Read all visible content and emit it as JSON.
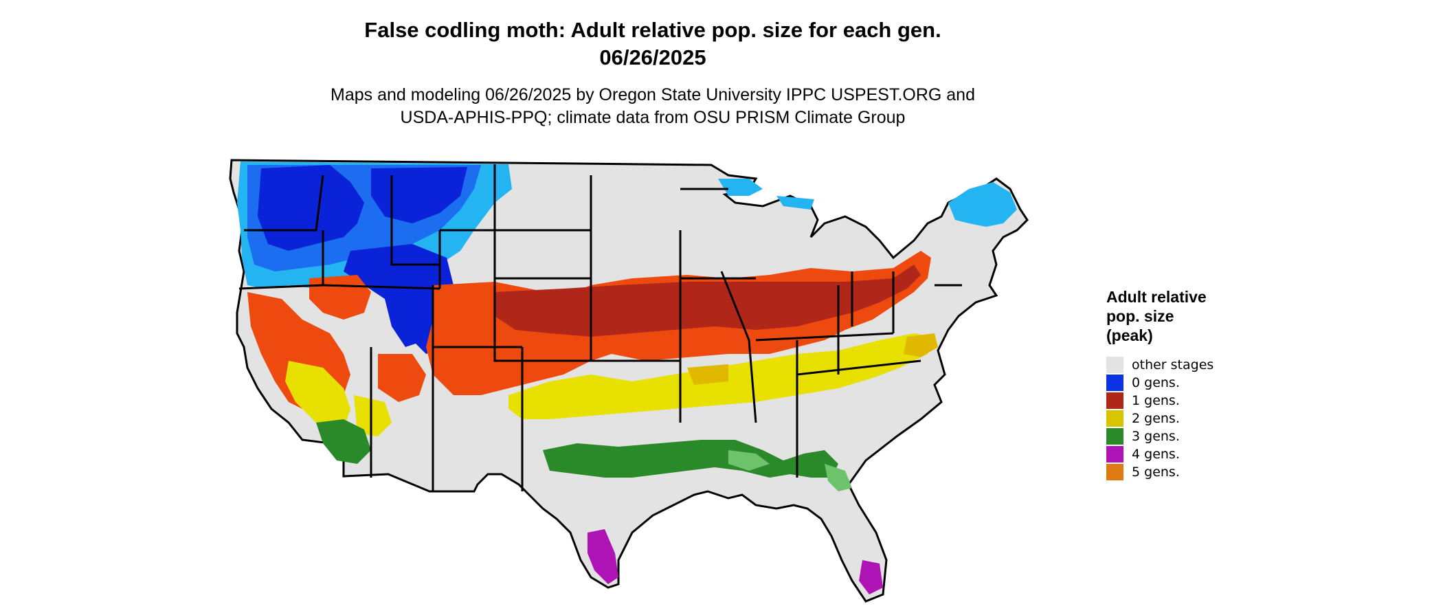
{
  "title_line1": "False codling moth: Adult relative pop. size for each gen.",
  "title_line2": "06/26/2025",
  "subtitle_line1": "Maps and modeling 06/26/2025 by Oregon State University IPPC USPEST.ORG and",
  "subtitle_line2": "USDA-APHIS-PPQ; climate data from OSU PRISM Climate Group",
  "legend": {
    "title": "Adult relative\npop. size\n(peak)",
    "items": [
      {
        "label": "other stages",
        "color": "#e3e3e3"
      },
      {
        "label": "0 gens.",
        "color": "#0a33e6"
      },
      {
        "label": "1 gens.",
        "color": "#b0271a"
      },
      {
        "label": "2 gens.",
        "color": "#d8c400"
      },
      {
        "label": "3 gens.",
        "color": "#2a8a2a"
      },
      {
        "label": "4 gens.",
        "color": "#ad13b5"
      },
      {
        "label": "5 gens.",
        "color": "#e07a12"
      }
    ]
  },
  "map_colors": {
    "background_land": "#e3e3e3",
    "zero_gen_dark": "#0a22d8",
    "zero_gen_mid": "#1c6df0",
    "zero_gen_light": "#24b4f2",
    "one_gen_dark": "#b0271a",
    "one_gen_orange": "#ee4a10",
    "two_gen_yellow": "#e8e000",
    "two_gen_gold": "#e0b800",
    "three_gen_green": "#2a8a2a",
    "three_gen_light": "#6cc36c",
    "four_gen_magenta": "#ad13b5",
    "border": "#000000"
  }
}
